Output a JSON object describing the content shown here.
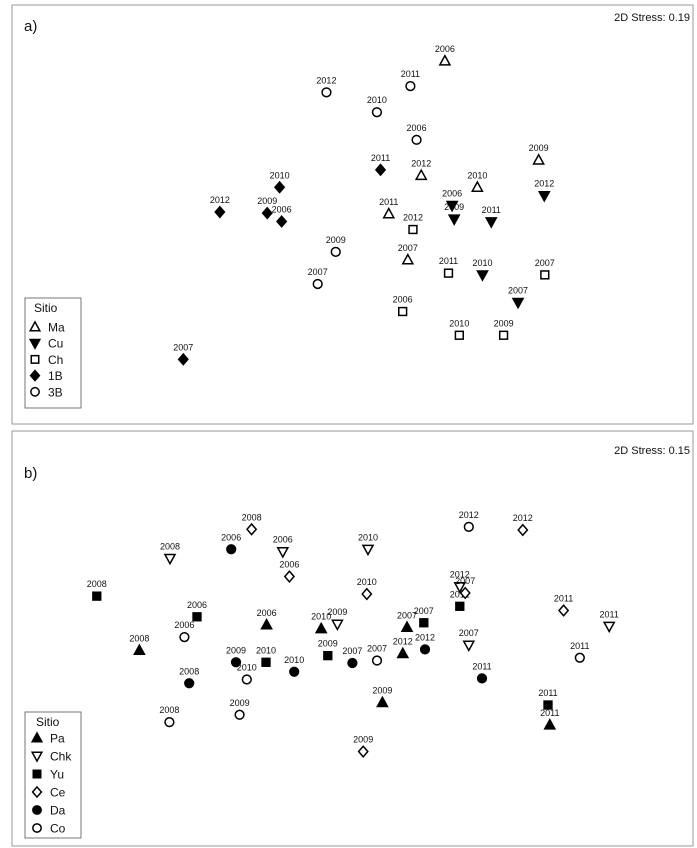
{
  "chart_data": [
    {
      "type": "scatter",
      "panel_label": "a)",
      "stress_label": "2D Stress: 0.19",
      "legend_title": "Sitio",
      "legend_position": "bottom-left",
      "xlim": [
        0,
        100
      ],
      "ylim": [
        0,
        100
      ],
      "series": [
        {
          "name": "Ma",
          "marker": "triangle-up",
          "fill": "open",
          "points": [
            {
              "x": 66.0,
              "y": 94.0,
              "label": "2006"
            },
            {
              "x": 61.4,
              "y": 61.2,
              "label": "2012"
            },
            {
              "x": 72.3,
              "y": 57.8,
              "label": "2010"
            },
            {
              "x": 84.2,
              "y": 65.6,
              "label": "2009"
            },
            {
              "x": 55.1,
              "y": 50.2,
              "label": "2011"
            },
            {
              "x": 58.8,
              "y": 37.0,
              "label": "2007"
            }
          ]
        },
        {
          "name": "Cu",
          "marker": "triangle-down",
          "fill": "filled",
          "points": [
            {
              "x": 67.4,
              "y": 52.6,
              "label": "2006"
            },
            {
              "x": 67.8,
              "y": 48.7,
              "label": "2009"
            },
            {
              "x": 75.0,
              "y": 47.9,
              "label": "2011"
            },
            {
              "x": 85.3,
              "y": 55.4,
              "label": "2012"
            },
            {
              "x": 73.3,
              "y": 32.7,
              "label": "2010"
            },
            {
              "x": 80.2,
              "y": 24.8,
              "label": "2007"
            }
          ]
        },
        {
          "name": "Ch",
          "marker": "square",
          "fill": "open",
          "points": [
            {
              "x": 59.8,
              "y": 45.7,
              "label": "2012"
            },
            {
              "x": 66.7,
              "y": 33.2,
              "label": "2011"
            },
            {
              "x": 85.4,
              "y": 32.7,
              "label": "2007"
            },
            {
              "x": 57.8,
              "y": 22.2,
              "label": "2006"
            },
            {
              "x": 68.8,
              "y": 15.4,
              "label": "2010"
            },
            {
              "x": 77.4,
              "y": 15.4,
              "label": "2009"
            }
          ]
        },
        {
          "name": "1B",
          "marker": "diamond",
          "fill": "filled",
          "points": [
            {
              "x": 53.5,
              "y": 62.8,
              "label": "2011"
            },
            {
              "x": 33.9,
              "y": 57.8,
              "label": "2010"
            },
            {
              "x": 22.3,
              "y": 50.7,
              "label": "2012"
            },
            {
              "x": 31.5,
              "y": 50.4,
              "label": "2009"
            },
            {
              "x": 34.3,
              "y": 48.0,
              "label": "2006"
            },
            {
              "x": 15.2,
              "y": 8.5,
              "label": "2007"
            }
          ]
        },
        {
          "name": "3B",
          "marker": "circle",
          "fill": "open",
          "points": [
            {
              "x": 43.0,
              "y": 85.0,
              "label": "2012"
            },
            {
              "x": 59.3,
              "y": 86.8,
              "label": "2011"
            },
            {
              "x": 52.8,
              "y": 79.3,
              "label": "2010"
            },
            {
              "x": 60.5,
              "y": 71.4,
              "label": "2006"
            },
            {
              "x": 44.8,
              "y": 39.3,
              "label": "2009"
            },
            {
              "x": 41.3,
              "y": 30.1,
              "label": "2007"
            }
          ]
        }
      ]
    },
    {
      "type": "scatter",
      "panel_label": "b)",
      "stress_label": "2D Stress: 0.15",
      "legend_title": "Sitio",
      "legend_position": "bottom-left",
      "xlim": [
        0,
        100
      ],
      "ylim": [
        0,
        100
      ],
      "series": [
        {
          "name": "Pa",
          "marker": "triangle-up",
          "fill": "filled",
          "points": [
            {
              "x": 14.9,
              "y": 45.6,
              "label": "2008"
            },
            {
              "x": 36.1,
              "y": 52.9,
              "label": "2006"
            },
            {
              "x": 45.2,
              "y": 51.8,
              "label": "2010"
            },
            {
              "x": 59.5,
              "y": 52.2,
              "label": "2007"
            },
            {
              "x": 58.8,
              "y": 44.7,
              "label": "2012"
            },
            {
              "x": 55.4,
              "y": 30.7,
              "label": "2009"
            },
            {
              "x": 83.3,
              "y": 24.3,
              "label": "2011"
            }
          ]
        },
        {
          "name": "Chk",
          "marker": "triangle-down",
          "fill": "open",
          "points": [
            {
              "x": 20.0,
              "y": 71.9,
              "label": "2008"
            },
            {
              "x": 38.8,
              "y": 73.8,
              "label": "2006"
            },
            {
              "x": 53.0,
              "y": 74.5,
              "label": "2010"
            },
            {
              "x": 47.9,
              "y": 53.1,
              "label": "2009"
            },
            {
              "x": 68.3,
              "y": 63.8,
              "label": "2012"
            },
            {
              "x": 69.8,
              "y": 47.1,
              "label": "2007"
            },
            {
              "x": 93.2,
              "y": 52.5,
              "label": "2011"
            }
          ]
        },
        {
          "name": "Yu",
          "marker": "square",
          "fill": "filled",
          "points": [
            {
              "x": 7.8,
              "y": 61.1,
              "label": "2008"
            },
            {
              "x": 24.5,
              "y": 55.2,
              "label": "2006"
            },
            {
              "x": 36.0,
              "y": 42.2,
              "label": "2010"
            },
            {
              "x": 46.3,
              "y": 44.1,
              "label": "2009"
            },
            {
              "x": 62.3,
              "y": 53.5,
              "label": "2007"
            },
            {
              "x": 68.3,
              "y": 58.2,
              "label": "2012"
            },
            {
              "x": 83.0,
              "y": 30.0,
              "label": "2011"
            }
          ]
        },
        {
          "name": "Ce",
          "marker": "diamond",
          "fill": "open",
          "points": [
            {
              "x": 33.6,
              "y": 80.2,
              "label": "2008"
            },
            {
              "x": 39.9,
              "y": 66.7,
              "label": "2006"
            },
            {
              "x": 52.8,
              "y": 61.7,
              "label": "2010"
            },
            {
              "x": 69.2,
              "y": 62.0,
              "label": "2007"
            },
            {
              "x": 78.8,
              "y": 80.0,
              "label": "2012"
            },
            {
              "x": 85.6,
              "y": 57.0,
              "label": "2011"
            },
            {
              "x": 52.2,
              "y": 16.7,
              "label": "2009"
            }
          ]
        },
        {
          "name": "Da",
          "marker": "circle",
          "fill": "filled",
          "points": [
            {
              "x": 30.2,
              "y": 74.5,
              "label": "2006"
            },
            {
              "x": 31.0,
              "y": 42.2,
              "label": "2009"
            },
            {
              "x": 23.2,
              "y": 36.2,
              "label": "2008"
            },
            {
              "x": 40.7,
              "y": 39.5,
              "label": "2010"
            },
            {
              "x": 50.4,
              "y": 42.0,
              "label": "2007"
            },
            {
              "x": 62.5,
              "y": 45.9,
              "label": "2012"
            },
            {
              "x": 72.0,
              "y": 37.6,
              "label": "2011"
            }
          ]
        },
        {
          "name": "Co",
          "marker": "circle",
          "fill": "open",
          "points": [
            {
              "x": 22.4,
              "y": 49.4,
              "label": "2006"
            },
            {
              "x": 32.8,
              "y": 37.3,
              "label": "2010"
            },
            {
              "x": 31.6,
              "y": 27.2,
              "label": "2009"
            },
            {
              "x": 19.9,
              "y": 25.1,
              "label": "2008"
            },
            {
              "x": 54.5,
              "y": 42.7,
              "label": "2007"
            },
            {
              "x": 69.8,
              "y": 80.9,
              "label": "2012"
            },
            {
              "x": 88.3,
              "y": 43.5,
              "label": "2011"
            }
          ]
        }
      ]
    }
  ]
}
